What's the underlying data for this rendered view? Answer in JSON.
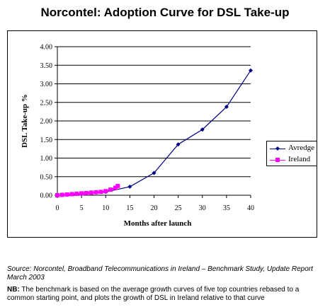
{
  "title": "Norcontel: Adoption Curve for DSL Take-up",
  "source_text": "Source: Norcontel, Broadband Telecommunications in Ireland – Benchmark Study, Update Report March 2003",
  "note_prefix": "NB:",
  "note_text": "The benchmark is based on the average growth curves of five top countries rebased to a common starting point, and plots the growth of DSL in Ireland relative to that curve",
  "colors": {
    "avredge": "#000080",
    "ireland": "#ff00ff",
    "grid": "#000000"
  },
  "chart_data": {
    "type": "line",
    "title": "Norcontel: Adoption Curve for DSL Take-up",
    "xlabel": "Months after launch",
    "ylabel": "DSL Take-up %",
    "xlim": [
      0,
      40
    ],
    "ylim": [
      0,
      4
    ],
    "x_ticks": [
      "0",
      "5",
      "10",
      "15",
      "20",
      "25",
      "30",
      "35",
      "40"
    ],
    "y_ticks": [
      "0.00",
      "0.50",
      "1.00",
      "1.50",
      "2.00",
      "2.50",
      "3.00",
      "3.50",
      "4.00"
    ],
    "grid": "horizontal",
    "legend_position": "right",
    "series": [
      {
        "name": "Avredge",
        "color": "#000080",
        "marker": "diamond",
        "x": [
          0,
          5,
          10,
          15,
          20,
          25,
          30,
          35,
          40
        ],
        "y": [
          0.0,
          0.03,
          0.09,
          0.23,
          0.6,
          1.37,
          1.77,
          2.38,
          3.36
        ]
      },
      {
        "name": "Ireland",
        "color": "#ff00ff",
        "marker": "square",
        "x": [
          0,
          1,
          2,
          3,
          4,
          5,
          6,
          7,
          8,
          9,
          10,
          11,
          12,
          12.5
        ],
        "y": [
          0.0,
          0.01,
          0.02,
          0.03,
          0.04,
          0.05,
          0.06,
          0.07,
          0.08,
          0.09,
          0.11,
          0.15,
          0.2,
          0.25
        ]
      }
    ]
  }
}
